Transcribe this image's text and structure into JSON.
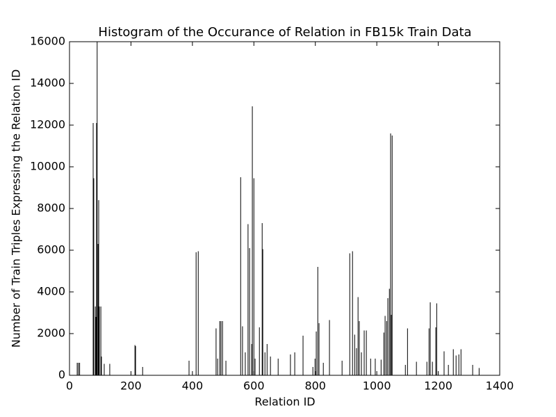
{
  "chart_data": {
    "type": "bar",
    "title": "Histogram of the Occurance of Relation in FB15k Train Data",
    "x_label": "Relation ID",
    "y_label": "Number of Train Triples Expressing the Relation ID",
    "color": "#000000",
    "xlim": [
      0,
      1400
    ],
    "xticks": [
      0,
      200,
      400,
      600,
      800,
      1000,
      1200,
      1400
    ],
    "ylim": [
      0,
      16000
    ],
    "yticks": [
      0,
      2000,
      4000,
      6000,
      8000,
      10000,
      12000,
      14000,
      16000
    ],
    "x": [
      25,
      29,
      33,
      77,
      79,
      84,
      86,
      88,
      90,
      93,
      95,
      97,
      102,
      104,
      113,
      131,
      213,
      215,
      238,
      389,
      412,
      419,
      477,
      482,
      489,
      493,
      498,
      509,
      557,
      563,
      572,
      581,
      586,
      593,
      595,
      600,
      604,
      618,
      627,
      629,
      636,
      643,
      654,
      679,
      719,
      733,
      760,
      792,
      799,
      803,
      808,
      812,
      826,
      846,
      887,
      912,
      921,
      928,
      934,
      939,
      943,
      950,
      959,
      966,
      980,
      995,
      1014,
      1023,
      1027,
      1032,
      1036,
      1041,
      1045,
      1047,
      1050,
      1093,
      1100,
      1129,
      1163,
      1170,
      1174,
      1181,
      1192,
      1195,
      1219,
      1233,
      1249,
      1258,
      1267,
      1274,
      1312,
      1333
    ],
    "values": [
      600,
      600,
      600,
      12100,
      9450,
      3300,
      2800,
      12100,
      16000,
      6300,
      8400,
      3300,
      3300,
      900,
      550,
      550,
      1450,
      1400,
      400,
      700,
      5900,
      5950,
      2250,
      800,
      2600,
      2600,
      2600,
      700,
      9500,
      2350,
      1100,
      7250,
      6100,
      1500,
      12900,
      9450,
      800,
      2300,
      7300,
      6050,
      1100,
      1500,
      900,
      800,
      1000,
      1100,
      1900,
      400,
      800,
      2100,
      5200,
      2500,
      600,
      2650,
      700,
      5850,
      5950,
      1950,
      1300,
      3750,
      2600,
      1100,
      2150,
      2150,
      800,
      800,
      750,
      2050,
      2850,
      2600,
      3700,
      4150,
      11600,
      2900,
      11500,
      500,
      2250,
      650,
      650,
      2250,
      3500,
      650,
      2300,
      3450,
      1150,
      500,
      1250,
      950,
      1000,
      1250,
      500,
      350
    ]
  }
}
